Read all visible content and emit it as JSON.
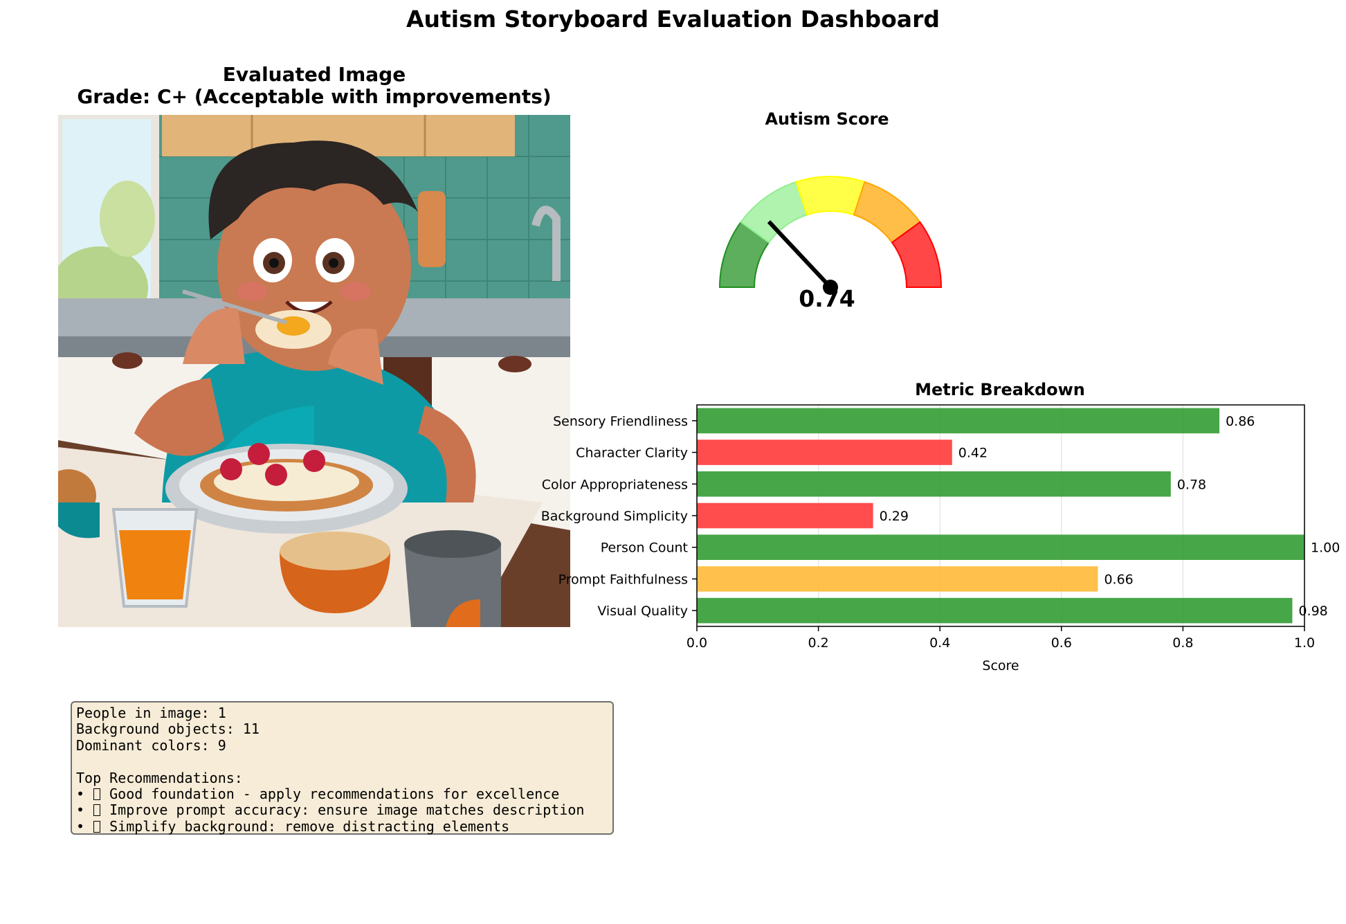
{
  "title": "Autism Storyboard Evaluation Dashboard",
  "image_panel": {
    "title_line1": "Evaluated Image",
    "title_line2": "Grade: C+ (Acceptable with improvements)"
  },
  "gauge": {
    "title": "Autism Score",
    "value": 0.74,
    "value_label": "0.74",
    "band_colors": [
      "#1f8f1f",
      "#90ee90",
      "#ffff00",
      "#ffa500",
      "#ff0000"
    ]
  },
  "chart_data": {
    "type": "bar",
    "orientation": "horizontal",
    "title": "Metric Breakdown",
    "xlabel": "Score",
    "ylabel": "",
    "xlim": [
      0,
      1.0
    ],
    "xticks": [
      "0.0",
      "0.2",
      "0.4",
      "0.6",
      "0.8",
      "1.0"
    ],
    "grid": "vertical",
    "categories": [
      "Sensory Friendliness",
      "Character Clarity",
      "Color Appropriateness",
      "Background Simplicity",
      "Person Count",
      "Prompt Faithfulness",
      "Visual Quality"
    ],
    "values": [
      0.86,
      0.42,
      0.78,
      0.29,
      1.0,
      0.66,
      0.98
    ],
    "value_labels": [
      "0.86",
      "0.42",
      "0.78",
      "0.29",
      "1.00",
      "0.66",
      "0.98"
    ],
    "bar_colors": [
      "#2e9a2e",
      "#ff3333",
      "#2e9a2e",
      "#ff3333",
      "#2e9a2e",
      "#ffb833",
      "#2e9a2e"
    ]
  },
  "info_box": {
    "lines": [
      "People in image: 1",
      "Background objects: 11",
      "Dominant colors: 9",
      "",
      "Top Recommendations:"
    ],
    "recommendations": [
      "Good foundation - apply recommendations for excellence",
      "Improve prompt accuracy: ensure image matches description",
      "Simplify background: remove distracting elements"
    ],
    "bullet": "•"
  }
}
